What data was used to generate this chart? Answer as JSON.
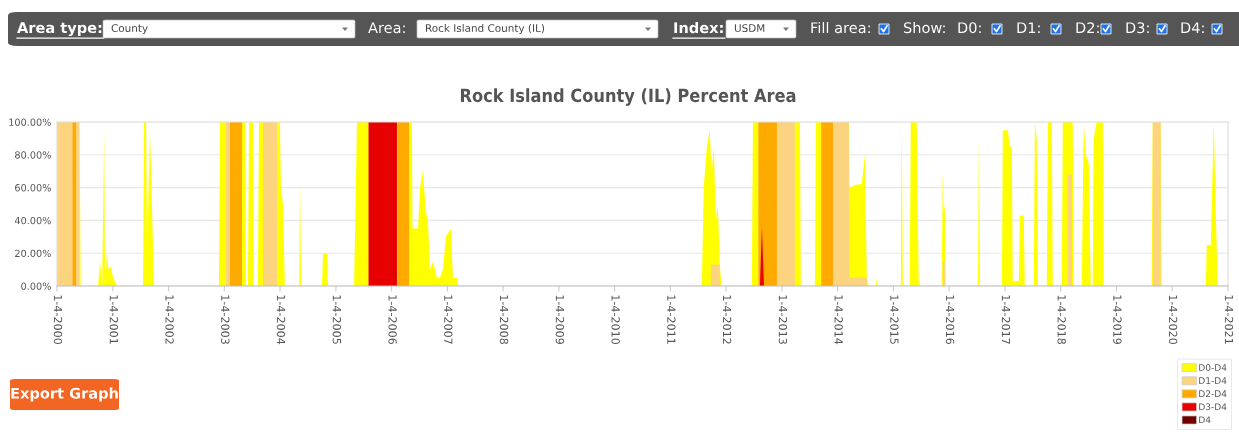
{
  "chart_data": {
    "type": "area",
    "title": "Rock Island County (IL) Percent Area",
    "x": [
      "2000-01-04",
      "2000-04-12",
      "2000-04-15",
      "2000-05-08",
      "2000-05-12",
      "2000-05-28",
      "2000-05-31",
      "2000-06-07",
      "2000-09-29",
      "2000-10-12",
      "2000-10-26",
      "2000-11-08",
      "2000-11-14",
      "2000-11-27",
      "2000-12-04",
      "2000-12-23",
      "2001-01-05",
      "2001-02-01",
      "2001-07-21",
      "2001-07-27",
      "2001-08-10",
      "2001-08-16",
      "2001-09-04",
      "2001-10-01",
      "2002-11-30",
      "2002-12-07",
      "2003-01-15",
      "2003-02-04",
      "2003-02-10",
      "2003-04-30",
      "2003-05-06",
      "2003-05-19",
      "2003-05-26",
      "2003-06-08",
      "2003-06-15",
      "2003-07-11",
      "2003-07-17",
      "2003-08-12",
      "2003-08-19",
      "2003-09-14",
      "2003-12-15",
      "2003-12-21",
      "2004-01-03",
      "2004-01-10",
      "2004-01-23",
      "2004-02-05",
      "2004-05-08",
      "2004-05-14",
      "2004-05-21",
      "2004-10-05",
      "2004-10-12",
      "2004-11-07",
      "2004-11-13",
      "2005-05-03",
      "2005-05-09",
      "2005-05-22",
      "2005-08-02",
      "2005-08-06",
      "2006-02-08",
      "2006-02-11",
      "2006-04-28",
      "2006-05-01",
      "2006-05-17",
      "2006-05-21",
      "2006-06-26",
      "2006-07-09",
      "2006-07-28",
      "2006-08-17",
      "2006-08-30",
      "2006-09-12",
      "2006-10-02",
      "2006-10-28",
      "2006-11-16",
      "2006-12-06",
      "2006-12-26",
      "2007-01-27",
      "2007-02-10",
      "2007-03-08",
      "2007-03-14",
      "2011-07-29",
      "2011-08-11",
      "2011-08-31",
      "2011-09-19",
      "2011-09-26",
      "2011-10-03",
      "2011-10-16",
      "2011-10-29",
      "2011-11-11",
      "2011-11-24",
      "2011-12-01",
      "2011-12-07",
      "2012-06-21",
      "2012-06-28",
      "2012-07-31",
      "2012-08-03",
      "2012-08-13",
      "2012-08-26",
      "2012-09-08",
      "2012-12-02",
      "2012-12-05",
      "2013-03-30",
      "2013-04-02",
      "2013-05-02",
      "2013-05-08",
      "2013-08-08",
      "2013-08-14",
      "2013-09-16",
      "2013-09-19",
      "2013-12-04",
      "2013-12-07",
      "2014-03-18",
      "2014-03-22",
      "2014-05-16",
      "2014-06-11",
      "2014-07-01",
      "2014-07-14",
      "2014-07-27",
      "2014-09-11",
      "2014-09-18",
      "2014-09-24",
      "2015-02-22",
      "2015-02-28",
      "2015-03-07",
      "2015-04-21",
      "2015-04-28",
      "2015-06-06",
      "2015-06-19",
      "2015-06-26",
      "2015-11-17",
      "2015-11-23",
      "2015-11-30",
      "2015-12-07",
      "2015-12-13",
      "2016-07-11",
      "2016-07-17",
      "2016-07-23",
      "2016-12-15",
      "2016-12-21",
      "2017-01-23",
      "2017-02-05",
      "2017-02-18",
      "2017-02-24",
      "2017-04-05",
      "2017-04-11",
      "2017-05-07",
      "2017-05-14",
      "2017-07-12",
      "2017-07-19",
      "2017-07-31",
      "2017-08-07",
      "2017-10-05",
      "2017-10-12",
      "2017-11-07",
      "2017-11-13",
      "2018-01-11",
      "2018-01-18",
      "2018-02-13",
      "2018-02-19",
      "2018-03-18",
      "2018-03-24",
      "2018-03-31",
      "2018-05-22",
      "2018-06-04",
      "2018-06-17",
      "2018-07-07",
      "2018-07-20",
      "2018-08-02",
      "2018-08-08",
      "2018-08-28",
      "2018-10-07",
      "2018-10-13",
      "2019-08-23",
      "2019-08-30",
      "2019-10-21",
      "2019-10-28",
      "2020-08-12",
      "2020-08-18",
      "2020-09-13",
      "2020-10-03",
      "2020-10-16",
      "2020-10-29",
      "2021-01-04"
    ],
    "series": [
      {
        "name": "D0-D4",
        "color": "#ffff00",
        "values": [
          100,
          100,
          100,
          100,
          100,
          100,
          100,
          0,
          0,
          15,
          0,
          95,
          0,
          22,
          10,
          12,
          5,
          0,
          0,
          100,
          100,
          20,
          95,
          0,
          0,
          100,
          100,
          100,
          100,
          100,
          100,
          100,
          0,
          0,
          100,
          100,
          0,
          0,
          100,
          100,
          100,
          100,
          100,
          60,
          50,
          0,
          0,
          65,
          0,
          0,
          20,
          20,
          0,
          0,
          30,
          100,
          100,
          100,
          100,
          100,
          100,
          100,
          100,
          35,
          35,
          60,
          70,
          45,
          40,
          10,
          15,
          5,
          5,
          10,
          30,
          35,
          5,
          5,
          0,
          0,
          60,
          85,
          95,
          80,
          70,
          85,
          40,
          50,
          13,
          5,
          0,
          0,
          100,
          100,
          100,
          100,
          100,
          100,
          100,
          100,
          100,
          100,
          100,
          0,
          0,
          100,
          100,
          100,
          100,
          100,
          100,
          60,
          62,
          62,
          80,
          5,
          0,
          0,
          5,
          0,
          0,
          100,
          0,
          0,
          100,
          100,
          3,
          0,
          0,
          70,
          45,
          50,
          0,
          0,
          90,
          0,
          0,
          95,
          95,
          85,
          85,
          3,
          3,
          43,
          43,
          0,
          0,
          100,
          90,
          0,
          0,
          100,
          100,
          0,
          0,
          100,
          100,
          100,
          100,
          100,
          0,
          0,
          100,
          80,
          75,
          0,
          0,
          90,
          100,
          100,
          0,
          0,
          100,
          100,
          0,
          0,
          25,
          25,
          100,
          45,
          0,
          0
        ]
      },
      {
        "name": "D1-D4",
        "color": "#fcd37f",
        "values": [
          100,
          100,
          100,
          100,
          100,
          100,
          null,
          null,
          null,
          null,
          null,
          null,
          null,
          null,
          null,
          null,
          null,
          null,
          null,
          null,
          null,
          null,
          null,
          null,
          null,
          null,
          100,
          100,
          100,
          100,
          null,
          null,
          null,
          null,
          null,
          null,
          null,
          null,
          null,
          100,
          100,
          null,
          null,
          null,
          null,
          null,
          null,
          null,
          null,
          null,
          null,
          null,
          null,
          null,
          null,
          null,
          null,
          100,
          100,
          100,
          100,
          null,
          null,
          null,
          null,
          null,
          null,
          null,
          null,
          null,
          null,
          null,
          null,
          null,
          null,
          null,
          null,
          null,
          null,
          null,
          null,
          null,
          null,
          13,
          13,
          13,
          13,
          13,
          13,
          null,
          null,
          null,
          null,
          null,
          100,
          100,
          100,
          100,
          100,
          100,
          100,
          null,
          null,
          null,
          null,
          null,
          null,
          100,
          100,
          100,
          100,
          5,
          5,
          5,
          5,
          5,
          null,
          null,
          null,
          null,
          null,
          null,
          null,
          null,
          null,
          null,
          null,
          null,
          null,
          15,
          15,
          15,
          null,
          null,
          null,
          null,
          null,
          null,
          null,
          null,
          null,
          null,
          null,
          null,
          null,
          null,
          null,
          null,
          null,
          null,
          null,
          null,
          null,
          null,
          null,
          null,
          null,
          68,
          68,
          null,
          null,
          null,
          null,
          null,
          null,
          null,
          null,
          null,
          null,
          null,
          null,
          null,
          100,
          100,
          null,
          null,
          null,
          null,
          null,
          null,
          null,
          null
        ]
      },
      {
        "name": "D2-D4",
        "color": "#ffaa00",
        "values": [
          null,
          null,
          100,
          100,
          null,
          null,
          null,
          null,
          null,
          null,
          null,
          null,
          null,
          null,
          null,
          null,
          null,
          null,
          null,
          null,
          null,
          null,
          null,
          null,
          null,
          null,
          null,
          null,
          100,
          100,
          null,
          null,
          null,
          null,
          null,
          null,
          null,
          null,
          null,
          null,
          null,
          null,
          null,
          null,
          null,
          null,
          null,
          null,
          null,
          null,
          null,
          null,
          null,
          null,
          null,
          null,
          null,
          null,
          null,
          100,
          100,
          null,
          null,
          null,
          null,
          null,
          null,
          null,
          null,
          null,
          null,
          null,
          null,
          null,
          null,
          null,
          null,
          null,
          null,
          null,
          null,
          null,
          null,
          null,
          null,
          null,
          null,
          null,
          null,
          null,
          null,
          null,
          null,
          null,
          100,
          100,
          100,
          100,
          100,
          null,
          null,
          null,
          null,
          null,
          null,
          null,
          null,
          100,
          100,
          null,
          null,
          null,
          null,
          null,
          null,
          null,
          null,
          null,
          null,
          null,
          null,
          null,
          null,
          null,
          null,
          null,
          null,
          null,
          null,
          null,
          null,
          null,
          null,
          null,
          null,
          null,
          null,
          null,
          null,
          null,
          null,
          null,
          null,
          null,
          null,
          null,
          null,
          null,
          null,
          null,
          null,
          null,
          null,
          null,
          null,
          null,
          null,
          null,
          null,
          null,
          null,
          null,
          null,
          null,
          null,
          null,
          null,
          null,
          null,
          null,
          null,
          null,
          null,
          null,
          null,
          null,
          null,
          null,
          null,
          null,
          null,
          null
        ]
      },
      {
        "name": "D3-D4",
        "color": "#e60000",
        "values": [
          null,
          null,
          null,
          null,
          null,
          null,
          null,
          null,
          null,
          null,
          null,
          null,
          null,
          null,
          null,
          null,
          null,
          null,
          null,
          null,
          null,
          null,
          null,
          null,
          null,
          null,
          null,
          null,
          null,
          null,
          null,
          null,
          null,
          null,
          null,
          null,
          null,
          null,
          null,
          null,
          null,
          null,
          null,
          null,
          null,
          null,
          null,
          null,
          null,
          null,
          null,
          null,
          null,
          null,
          null,
          null,
          null,
          100,
          100,
          null,
          null,
          null,
          null,
          null,
          null,
          null,
          null,
          null,
          null,
          null,
          null,
          null,
          null,
          null,
          null,
          null,
          null,
          null,
          null,
          null,
          null,
          null,
          null,
          null,
          null,
          null,
          null,
          null,
          null,
          null,
          null,
          null,
          null,
          null,
          null,
          0,
          36,
          0,
          null,
          null,
          null,
          null,
          null,
          null,
          null,
          null,
          null,
          null,
          null,
          null,
          null,
          null,
          null,
          null,
          null,
          null,
          null,
          null,
          null,
          null,
          null,
          null,
          null,
          null,
          null,
          null,
          null,
          null,
          null,
          null,
          null,
          null,
          null,
          null,
          null,
          null,
          null,
          null,
          null,
          null,
          null,
          null,
          null,
          null,
          null,
          null,
          null,
          null,
          null,
          null,
          null,
          null,
          null,
          null,
          null,
          null,
          null,
          null,
          null,
          null,
          null,
          null,
          null,
          null,
          null,
          null,
          null,
          null,
          null,
          null,
          null,
          null,
          null,
          null,
          null,
          null,
          null,
          null,
          null,
          null,
          null,
          null
        ]
      },
      {
        "name": "D4",
        "color": "#730000",
        "values": [
          null,
          null,
          null,
          null,
          null,
          null,
          null,
          null,
          null,
          null,
          null,
          null,
          null,
          null,
          null,
          null,
          null,
          null,
          null,
          null,
          null,
          null,
          null,
          null,
          null,
          null,
          null,
          null,
          null,
          null,
          null,
          null,
          null,
          null,
          null,
          null,
          null,
          null,
          null,
          null,
          null,
          null,
          null,
          null,
          null,
          null,
          null,
          null,
          null,
          null,
          null,
          null,
          null,
          null,
          null,
          null,
          null,
          null,
          null,
          null,
          null,
          null,
          null,
          null,
          null,
          null,
          null,
          null,
          null,
          null,
          null,
          null,
          null,
          null,
          null,
          null,
          null,
          null,
          null,
          null,
          null,
          null,
          null,
          null,
          null,
          null,
          null,
          null,
          null,
          null,
          null,
          null,
          null,
          null,
          null,
          null,
          null,
          null,
          null,
          null,
          null,
          null,
          null,
          null,
          null,
          null,
          null,
          null,
          null,
          null,
          null,
          null,
          null,
          null,
          null,
          null,
          null,
          null,
          null,
          null,
          null,
          null,
          null,
          null,
          null,
          null,
          null,
          null,
          null,
          null,
          null,
          null,
          null,
          null,
          null,
          null,
          null,
          null,
          null,
          null,
          null,
          null,
          null,
          null,
          null,
          null,
          null,
          null,
          null,
          null,
          null,
          null,
          null,
          null,
          null,
          null,
          null,
          null,
          null,
          null,
          null,
          null,
          null,
          null,
          null,
          null,
          null,
          null,
          null,
          null,
          null,
          null,
          null,
          null,
          null,
          null,
          null,
          null,
          null,
          null,
          null,
          null
        ]
      }
    ],
    "xlim": [
      "2000-01-04",
      "2021-01-04"
    ],
    "xticks": [
      {
        "value": "2000-01-04",
        "label": "1-4-2000"
      },
      {
        "value": "2001-01-04",
        "label": "1-4-2001"
      },
      {
        "value": "2002-01-04",
        "label": "1-4-2002"
      },
      {
        "value": "2003-01-04",
        "label": "1-4-2003"
      },
      {
        "value": "2004-01-04",
        "label": "1-4-2004"
      },
      {
        "value": "2005-01-04",
        "label": "1-4-2005"
      },
      {
        "value": "2006-01-04",
        "label": "1-4-2006"
      },
      {
        "value": "2007-01-04",
        "label": "1-4-2007"
      },
      {
        "value": "2008-01-04",
        "label": "1-4-2008"
      },
      {
        "value": "2009-01-04",
        "label": "1-4-2009"
      },
      {
        "value": "2010-01-04",
        "label": "1-4-2010"
      },
      {
        "value": "2011-01-04",
        "label": "1-4-2011"
      },
      {
        "value": "2012-01-04",
        "label": "1-4-2012"
      },
      {
        "value": "2013-01-04",
        "label": "1-4-2013"
      },
      {
        "value": "2014-01-04",
        "label": "1-4-2014"
      },
      {
        "value": "2015-01-04",
        "label": "1-4-2015"
      },
      {
        "value": "2016-01-04",
        "label": "1-4-2016"
      },
      {
        "value": "2017-01-04",
        "label": "1-4-2017"
      },
      {
        "value": "2018-01-04",
        "label": "1-4-2018"
      },
      {
        "value": "2019-01-04",
        "label": "1-4-2019"
      },
      {
        "value": "2020-01-04",
        "label": "1-4-2020"
      },
      {
        "value": "2021-01-04",
        "label": "1-4-2021"
      }
    ],
    "ylim": [
      0,
      100
    ],
    "yticks": [
      {
        "value": 0,
        "label": "0.00%"
      },
      {
        "value": 20,
        "label": "20.00%"
      },
      {
        "value": 40,
        "label": "40.00%"
      },
      {
        "value": 60,
        "label": "60.00%"
      },
      {
        "value": 80,
        "label": "80.00%"
      },
      {
        "value": 100,
        "label": "100.00%"
      }
    ],
    "grid": "y",
    "legend": "bottom right",
    "annotations": [
      "Area type:",
      "County",
      "Area:",
      "Rock Island County (IL)",
      "Index:",
      "USDM",
      "Fill area:",
      "Show:",
      "D0:",
      "D1:",
      "D2:",
      "D3:",
      "D4:",
      "Export Graph"
    ]
  }
}
